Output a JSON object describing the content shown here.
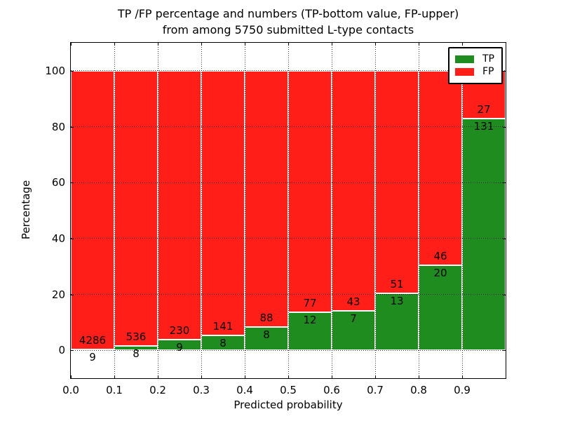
{
  "figure": {
    "background": "#ffffff"
  },
  "title": {
    "line1": "TP /FP percentage and numbers (TP-bottom value, FP-upper)",
    "line2": "from among 5750 submitted L-type contacts"
  },
  "chart_data": {
    "type": "bar",
    "stacked": true,
    "title": "TP /FP percentage and numbers (TP-bottom value, FP-upper) from among 5750 submitted L-type contacts",
    "xlabel": "Predicted probability",
    "ylabel": "Percentage",
    "xlim": [
      0.0,
      1.0
    ],
    "ylim": [
      -10,
      110
    ],
    "grid": true,
    "bin_width": 0.1,
    "total_contacts": 5750,
    "categories": [
      "0.0-0.1",
      "0.1-0.2",
      "0.2-0.3",
      "0.3-0.4",
      "0.4-0.5",
      "0.5-0.6",
      "0.6-0.7",
      "0.7-0.8",
      "0.8-0.9",
      "0.9-1.0"
    ],
    "bins": [
      {
        "range": "0.0-0.1",
        "tp": 9,
        "fp": 4286
      },
      {
        "range": "0.1-0.2",
        "tp": 8,
        "fp": 536
      },
      {
        "range": "0.2-0.3",
        "tp": 9,
        "fp": 230
      },
      {
        "range": "0.3-0.4",
        "tp": 8,
        "fp": 141
      },
      {
        "range": "0.4-0.5",
        "tp": 8,
        "fp": 88
      },
      {
        "range": "0.5-0.6",
        "tp": 12,
        "fp": 77
      },
      {
        "range": "0.6-0.7",
        "tp": 7,
        "fp": 43
      },
      {
        "range": "0.7-0.8",
        "tp": 13,
        "fp": 51
      },
      {
        "range": "0.8-0.9",
        "tp": 20,
        "fp": 46
      },
      {
        "range": "0.9-1.0",
        "tp": 131,
        "fp": 27
      }
    ],
    "series": [
      {
        "name": "TP",
        "color": "#1e8c1e"
      },
      {
        "name": "FP",
        "color": "#ff1e18"
      }
    ],
    "legend": {
      "position": "upper right",
      "entries": [
        {
          "label": "TP",
          "color": "#1e8c1e"
        },
        {
          "label": "FP",
          "color": "#ff1e18"
        }
      ]
    },
    "x_ticks": [
      {
        "pos": 0.0,
        "label": "0.0"
      },
      {
        "pos": 0.1,
        "label": "0.1"
      },
      {
        "pos": 0.2,
        "label": "0.2"
      },
      {
        "pos": 0.3,
        "label": "0.3"
      },
      {
        "pos": 0.4,
        "label": "0.4"
      },
      {
        "pos": 0.5,
        "label": "0.5"
      },
      {
        "pos": 0.6,
        "label": "0.6"
      },
      {
        "pos": 0.7,
        "label": "0.7"
      },
      {
        "pos": 0.8,
        "label": "0.8"
      },
      {
        "pos": 0.9,
        "label": "0.9"
      }
    ],
    "y_ticks": [
      {
        "pos": 0,
        "label": "0"
      },
      {
        "pos": 20,
        "label": "20"
      },
      {
        "pos": 40,
        "label": "40"
      },
      {
        "pos": 60,
        "label": "60"
      },
      {
        "pos": 80,
        "label": "80"
      },
      {
        "pos": 100,
        "label": "100"
      }
    ],
    "x_gridlines": [
      0.1,
      0.2,
      0.3,
      0.4,
      0.5,
      0.6,
      0.7,
      0.8,
      0.9
    ]
  }
}
